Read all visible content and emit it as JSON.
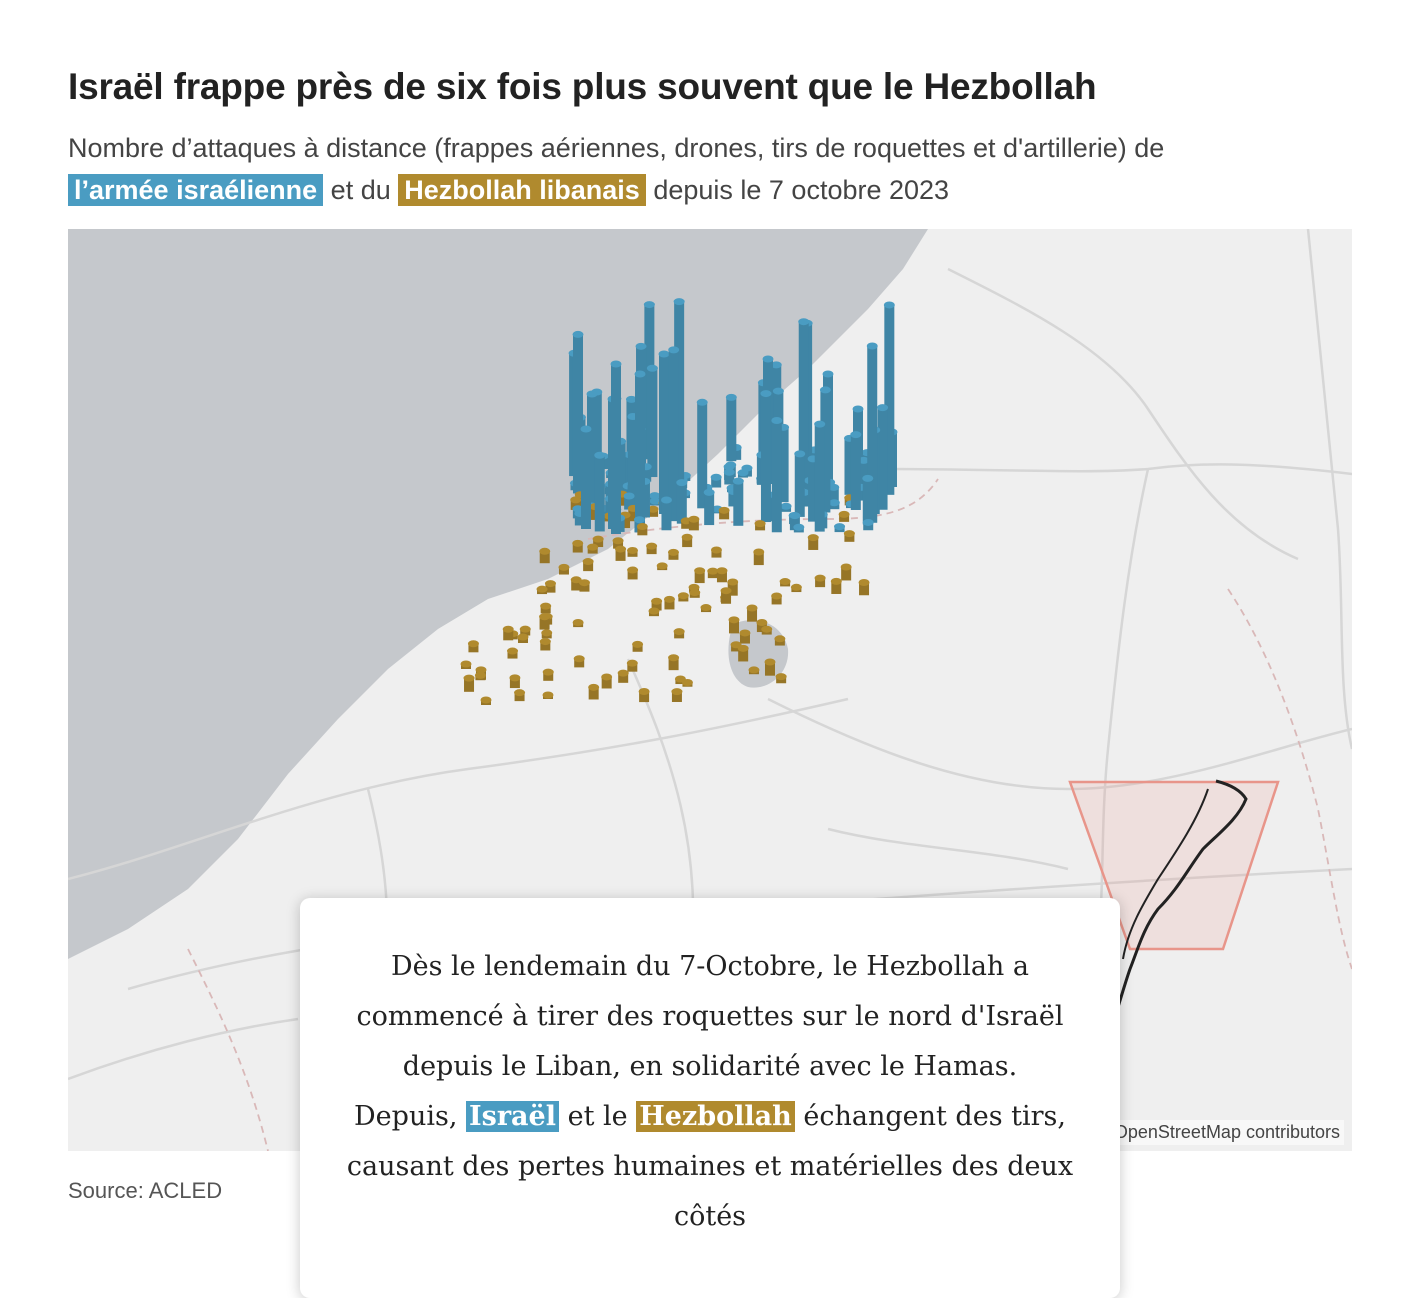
{
  "header": {
    "title": "Israël frappe près de six fois plus souvent que le Hezbollah",
    "subtitle_part1": "Nombre d’attaques à distance (frappes aériennes, drones, tirs de roquettes et d'artillerie) de",
    "subtitle_highlight_israel": "l’armée israélienne",
    "subtitle_part2": "et du",
    "subtitle_highlight_hezbollah": "Hezbollah libanais",
    "subtitle_part3": "depuis le 7 octobre 2023"
  },
  "colors": {
    "israel": "#4a9cc2",
    "hezbollah": "#b08a2e",
    "sea": "#c5c8cc",
    "land": "#efefef",
    "inset_box": "#e8958a"
  },
  "map": {
    "attribution": "© OpenMapTiles © OpenStreetMap contributors"
  },
  "card": {
    "line1": "Dès le lendemain du 7-Octobre, le Hezbollah a commencé à tirer des roquettes sur le nord d'Israël depuis le Liban, en solidarité avec le Hamas.",
    "line2_pre": "Depuis,",
    "line2_israel": "Israël",
    "line2_mid": "et le",
    "line2_hezbollah": "Hezbollah",
    "line2_post": "échangent des tirs, causant des pertes humaines et matérielles des deux côtés"
  },
  "footer": {
    "source": "Source: ACLED"
  }
}
